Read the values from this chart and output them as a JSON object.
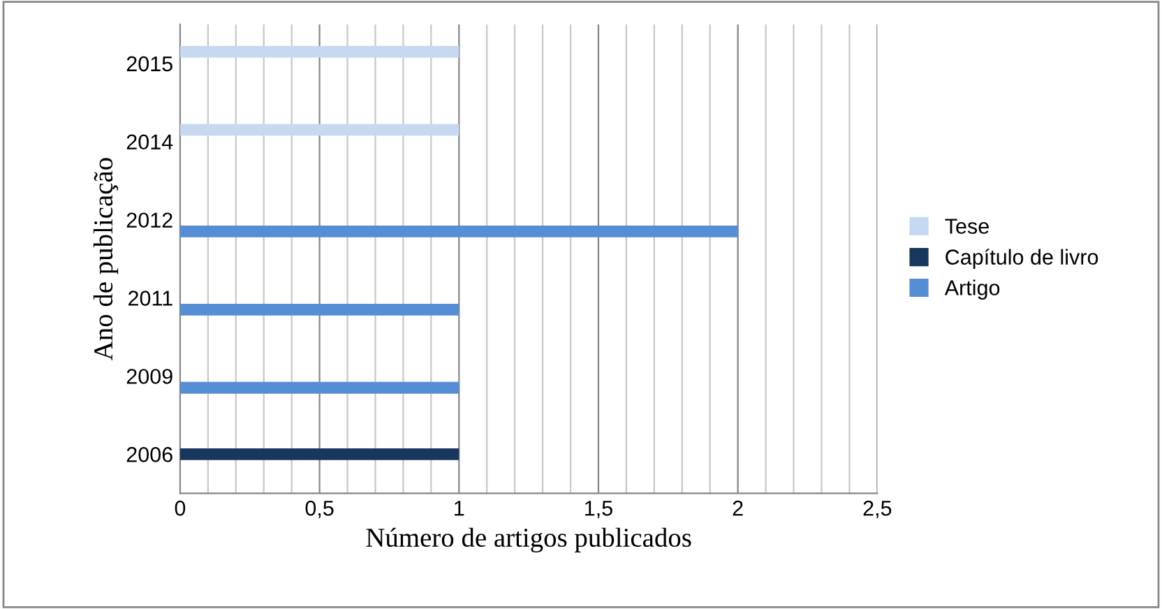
{
  "chart_data": {
    "type": "bar",
    "orientation": "horizontal",
    "categories": [
      "2015",
      "2014",
      "2012",
      "2011",
      "2009",
      "2006"
    ],
    "series": [
      {
        "name": "Tese",
        "color": "#c6d9f1",
        "values": [
          1,
          1,
          null,
          null,
          null,
          null
        ]
      },
      {
        "name": "Capítulo de livro",
        "color": "#17375e",
        "values": [
          null,
          null,
          null,
          null,
          null,
          1
        ]
      },
      {
        "name": "Artigo",
        "color": "#558ed5",
        "values": [
          null,
          null,
          2,
          1,
          1,
          null
        ]
      }
    ],
    "xlabel": "Número de artigos publicados",
    "ylabel": "Ano de publicação",
    "xlim": [
      0,
      2.5
    ],
    "xticks": [
      {
        "value": 0,
        "label": "0"
      },
      {
        "value": 0.1,
        "label": null
      },
      {
        "value": 0.2,
        "label": null
      },
      {
        "value": 0.3,
        "label": null
      },
      {
        "value": 0.4,
        "label": null
      },
      {
        "value": 0.5,
        "label": "0,5"
      },
      {
        "value": 0.6,
        "label": null
      },
      {
        "value": 0.7,
        "label": null
      },
      {
        "value": 0.8,
        "label": null
      },
      {
        "value": 0.9,
        "label": null
      },
      {
        "value": 1,
        "label": "1"
      },
      {
        "value": 1.1,
        "label": null
      },
      {
        "value": 1.2,
        "label": null
      },
      {
        "value": 1.3,
        "label": null
      },
      {
        "value": 1.4,
        "label": null
      },
      {
        "value": 1.5,
        "label": "1,5"
      },
      {
        "value": 1.6,
        "label": null
      },
      {
        "value": 1.7,
        "label": null
      },
      {
        "value": 1.8,
        "label": null
      },
      {
        "value": 1.9,
        "label": null
      },
      {
        "value": 2,
        "label": "2"
      },
      {
        "value": 2.1,
        "label": null
      },
      {
        "value": 2.2,
        "label": null
      },
      {
        "value": 2.3,
        "label": null
      },
      {
        "value": 2.4,
        "label": null
      },
      {
        "value": 2.5,
        "label": "2,5"
      }
    ],
    "grid": "x",
    "legend": "right"
  }
}
